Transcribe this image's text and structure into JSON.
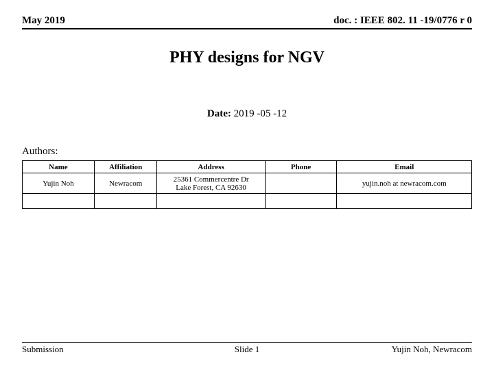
{
  "header": {
    "left": "May 2019",
    "right": "doc. : IEEE 802. 11 -19/0776 r 0"
  },
  "title": "PHY designs for NGV",
  "date": {
    "label": "Date:",
    "value": "2019 -05 -12"
  },
  "authors_label": "Authors:",
  "table": {
    "columns": [
      "Name",
      "Affiliation",
      "Address",
      "Phone",
      "Email"
    ],
    "rows": [
      [
        "Yujin Noh",
        "Newracom",
        "25361 Commercentre Dr\nLake Forest, CA 92630",
        "",
        "yujin.noh at newracom.com"
      ]
    ]
  },
  "footer": {
    "left": "Submission",
    "center": "Slide 1",
    "right": "Yujin Noh, Newracom"
  }
}
